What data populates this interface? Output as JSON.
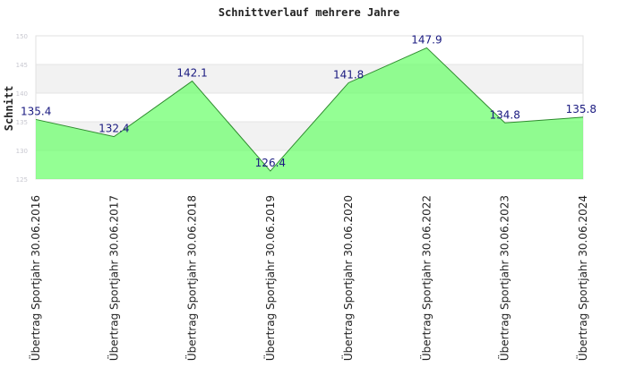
{
  "chart_data": {
    "type": "area",
    "title": "Schnittverlauf mehrere Jahre",
    "xlabel": "",
    "ylabel": "Schnitt",
    "categories": [
      "Übertrag Sportjahr 30.06.2016",
      "Übertrag Sportjahr 30.06.2017",
      "Übertrag Sportjahr 30.06.2018",
      "Übertrag Sportjahr 30.06.2019",
      "Übertrag Sportjahr 30.06.2020",
      "Übertrag Sportjahr 30.06.2022",
      "Übertrag Sportjahr 30.06.2023",
      "Übertrag Sportjahr 30.06.2024"
    ],
    "values": [
      135.4,
      132.4,
      142.1,
      126.4,
      141.8,
      147.9,
      134.8,
      135.8
    ],
    "data_labels": [
      "135.4",
      "132.4",
      "142.1",
      "126.4",
      "141.8",
      "147.9",
      "134.8",
      "135.8"
    ],
    "yticks": [
      "125",
      "130",
      "135",
      "140",
      "145",
      "150"
    ],
    "ylim": [
      125,
      150
    ],
    "grid": true,
    "band_colors": [
      "#ffffff",
      "#f2f2f2"
    ],
    "fill_color": "#66ff66",
    "line_color": "#2e8b2e",
    "label_color": "#1a1a80"
  }
}
